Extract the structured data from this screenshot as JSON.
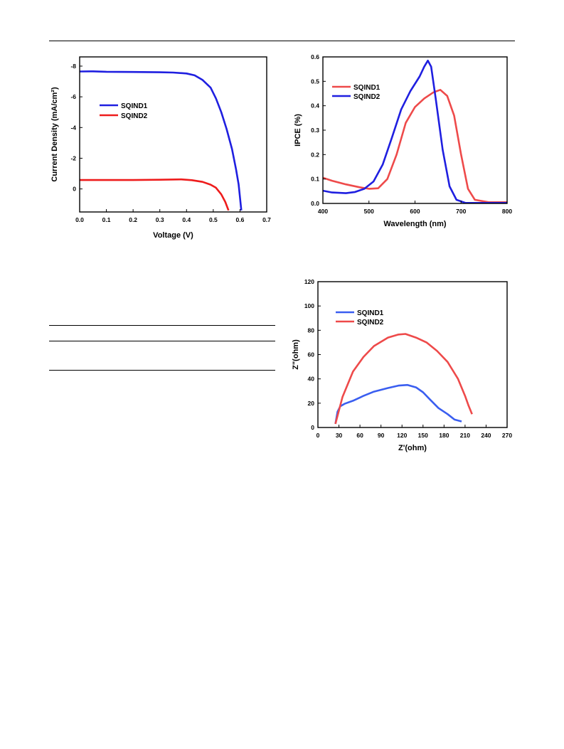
{
  "chart_data": [
    {
      "type": "line",
      "xlabel": "Voltage (V)",
      "ylabel": "Current Density (mA/cm²)",
      "xlim": [
        0.0,
        0.7
      ],
      "ylim": [
        1.5,
        -8.6
      ],
      "y_inverted": true,
      "grid": false,
      "legend_position": "left",
      "x_ticks": [
        "0.0",
        "0.1",
        "0.2",
        "0.3",
        "0.4",
        "0.5",
        "0.6",
        "0.7"
      ],
      "y_ticks": [
        "-8",
        "-6",
        "-4",
        "-2",
        "0"
      ],
      "series": [
        {
          "name": "SQIND1",
          "color": "#1f1fe0",
          "points": [
            [
              0.0,
              -7.65
            ],
            [
              0.05,
              -7.66
            ],
            [
              0.1,
              -7.63
            ],
            [
              0.2,
              -7.62
            ],
            [
              0.3,
              -7.6
            ],
            [
              0.35,
              -7.58
            ],
            [
              0.4,
              -7.52
            ],
            [
              0.43,
              -7.4
            ],
            [
              0.46,
              -7.1
            ],
            [
              0.49,
              -6.6
            ],
            [
              0.51,
              -5.9
            ],
            [
              0.53,
              -5.0
            ],
            [
              0.55,
              -3.9
            ],
            [
              0.57,
              -2.6
            ],
            [
              0.585,
              -1.3
            ],
            [
              0.595,
              -0.3
            ],
            [
              0.605,
              1.4
            ]
          ]
        },
        {
          "name": "SQIND2",
          "color": "#ee1c1c",
          "points": [
            [
              0.0,
              -0.58
            ],
            [
              0.1,
              -0.58
            ],
            [
              0.2,
              -0.58
            ],
            [
              0.3,
              -0.6
            ],
            [
              0.38,
              -0.62
            ],
            [
              0.42,
              -0.57
            ],
            [
              0.46,
              -0.46
            ],
            [
              0.49,
              -0.28
            ],
            [
              0.51,
              -0.08
            ],
            [
              0.53,
              0.35
            ],
            [
              0.545,
              0.85
            ],
            [
              0.557,
              1.4
            ]
          ]
        }
      ]
    },
    {
      "type": "line",
      "xlabel": "Wavelength (nm)",
      "ylabel": "IPCE (%)",
      "xlim": [
        400,
        800
      ],
      "ylim": [
        0,
        0.6
      ],
      "grid": false,
      "legend_position": "top-left",
      "x_ticks": [
        "400",
        "500",
        "600",
        "700",
        "800"
      ],
      "y_ticks": [
        "0.0",
        "0.1",
        "0.2",
        "0.3",
        "0.4",
        "0.5",
        "0.6"
      ],
      "series": [
        {
          "name": "SQIND1",
          "color": "#ee4a4a",
          "points": [
            [
              400,
              0.105
            ],
            [
              420,
              0.093
            ],
            [
              450,
              0.078
            ],
            [
              480,
              0.066
            ],
            [
              500,
              0.06
            ],
            [
              520,
              0.062
            ],
            [
              540,
              0.1
            ],
            [
              560,
              0.2
            ],
            [
              580,
              0.33
            ],
            [
              600,
              0.395
            ],
            [
              620,
              0.43
            ],
            [
              640,
              0.455
            ],
            [
              655,
              0.465
            ],
            [
              670,
              0.44
            ],
            [
              685,
              0.36
            ],
            [
              700,
              0.2
            ],
            [
              715,
              0.06
            ],
            [
              730,
              0.015
            ],
            [
              760,
              0.005
            ],
            [
              800,
              0.005
            ]
          ]
        },
        {
          "name": "SQIND2",
          "color": "#1f1fe0",
          "points": [
            [
              400,
              0.052
            ],
            [
              420,
              0.045
            ],
            [
              450,
              0.042
            ],
            [
              470,
              0.047
            ],
            [
              490,
              0.06
            ],
            [
              510,
              0.09
            ],
            [
              530,
              0.16
            ],
            [
              550,
              0.27
            ],
            [
              570,
              0.385
            ],
            [
              590,
              0.46
            ],
            [
              610,
              0.52
            ],
            [
              620,
              0.56
            ],
            [
              628,
              0.585
            ],
            [
              635,
              0.56
            ],
            [
              645,
              0.43
            ],
            [
              660,
              0.22
            ],
            [
              675,
              0.07
            ],
            [
              690,
              0.015
            ],
            [
              710,
              0.002
            ],
            [
              800,
              0.002
            ]
          ]
        }
      ]
    },
    {
      "type": "line",
      "xlabel": "Z'(ohm)",
      "ylabel": "Z\"(ohm)",
      "xlim": [
        0,
        270
      ],
      "ylim": [
        0,
        120
      ],
      "grid": false,
      "legend_position": "top-left",
      "x_ticks": [
        "0",
        "30",
        "60",
        "90",
        "120",
        "150",
        "180",
        "210",
        "240",
        "270"
      ],
      "y_ticks": [
        "0",
        "20",
        "40",
        "60",
        "80",
        "100",
        "120"
      ],
      "series": [
        {
          "name": "SQIND1",
          "color": "#3a5ef0",
          "points": [
            [
              25,
              3
            ],
            [
              28,
              13
            ],
            [
              32,
              17.5
            ],
            [
              38,
              19.5
            ],
            [
              50,
              22
            ],
            [
              65,
              26
            ],
            [
              80,
              29.5
            ],
            [
              100,
              32.5
            ],
            [
              115,
              34.5
            ],
            [
              128,
              35
            ],
            [
              140,
              33
            ],
            [
              150,
              29
            ],
            [
              160,
              23
            ],
            [
              172,
              16
            ],
            [
              185,
              11
            ],
            [
              195,
              6.5
            ],
            [
              205,
              5
            ]
          ]
        },
        {
          "name": "SQIND2",
          "color": "#ee4a4a",
          "points": [
            [
              25,
              3
            ],
            [
              35,
              25
            ],
            [
              50,
              46
            ],
            [
              65,
              58
            ],
            [
              80,
              67
            ],
            [
              100,
              74
            ],
            [
              115,
              76.5
            ],
            [
              125,
              77
            ],
            [
              140,
              74
            ],
            [
              155,
              70
            ],
            [
              170,
              63
            ],
            [
              185,
              54
            ],
            [
              200,
              40
            ],
            [
              210,
              26
            ],
            [
              215,
              18
            ],
            [
              220,
              11
            ]
          ]
        }
      ]
    }
  ]
}
